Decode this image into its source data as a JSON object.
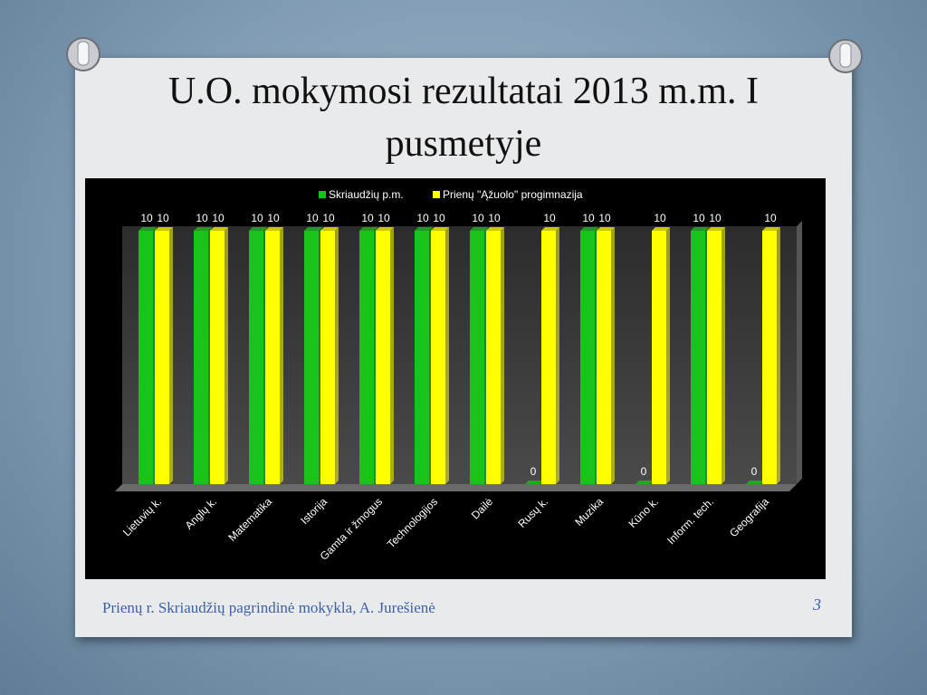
{
  "slide": {
    "title": "U.O. mokymosi rezultatai 2013 m.m. I pusmetyje",
    "footer": "Prienų r. Skriaudžių pagrindinė mokykla, A. Jurešienė",
    "page_number": "3"
  },
  "chart_data": {
    "type": "bar",
    "categories": [
      "Lietuvių k.",
      "Anglų k.",
      "Matematika",
      "Istorija",
      "Gamta ir žmogus",
      "Technologijos",
      "Dailė",
      "Rusų k.",
      "Muzika",
      "Kūno k.",
      "Inform. tech.",
      "Geografija"
    ],
    "series": [
      {
        "name": "Skriaudžių p.m.",
        "color": "#19c419",
        "values": [
          10,
          10,
          10,
          10,
          10,
          10,
          10,
          0,
          10,
          0,
          10,
          0
        ]
      },
      {
        "name": "Prienų \"Ąžuolo\" progimnazija",
        "color": "#ffff00",
        "values": [
          10,
          10,
          10,
          10,
          10,
          10,
          10,
          10,
          10,
          10,
          10,
          10
        ]
      }
    ],
    "legend": "top"
  }
}
